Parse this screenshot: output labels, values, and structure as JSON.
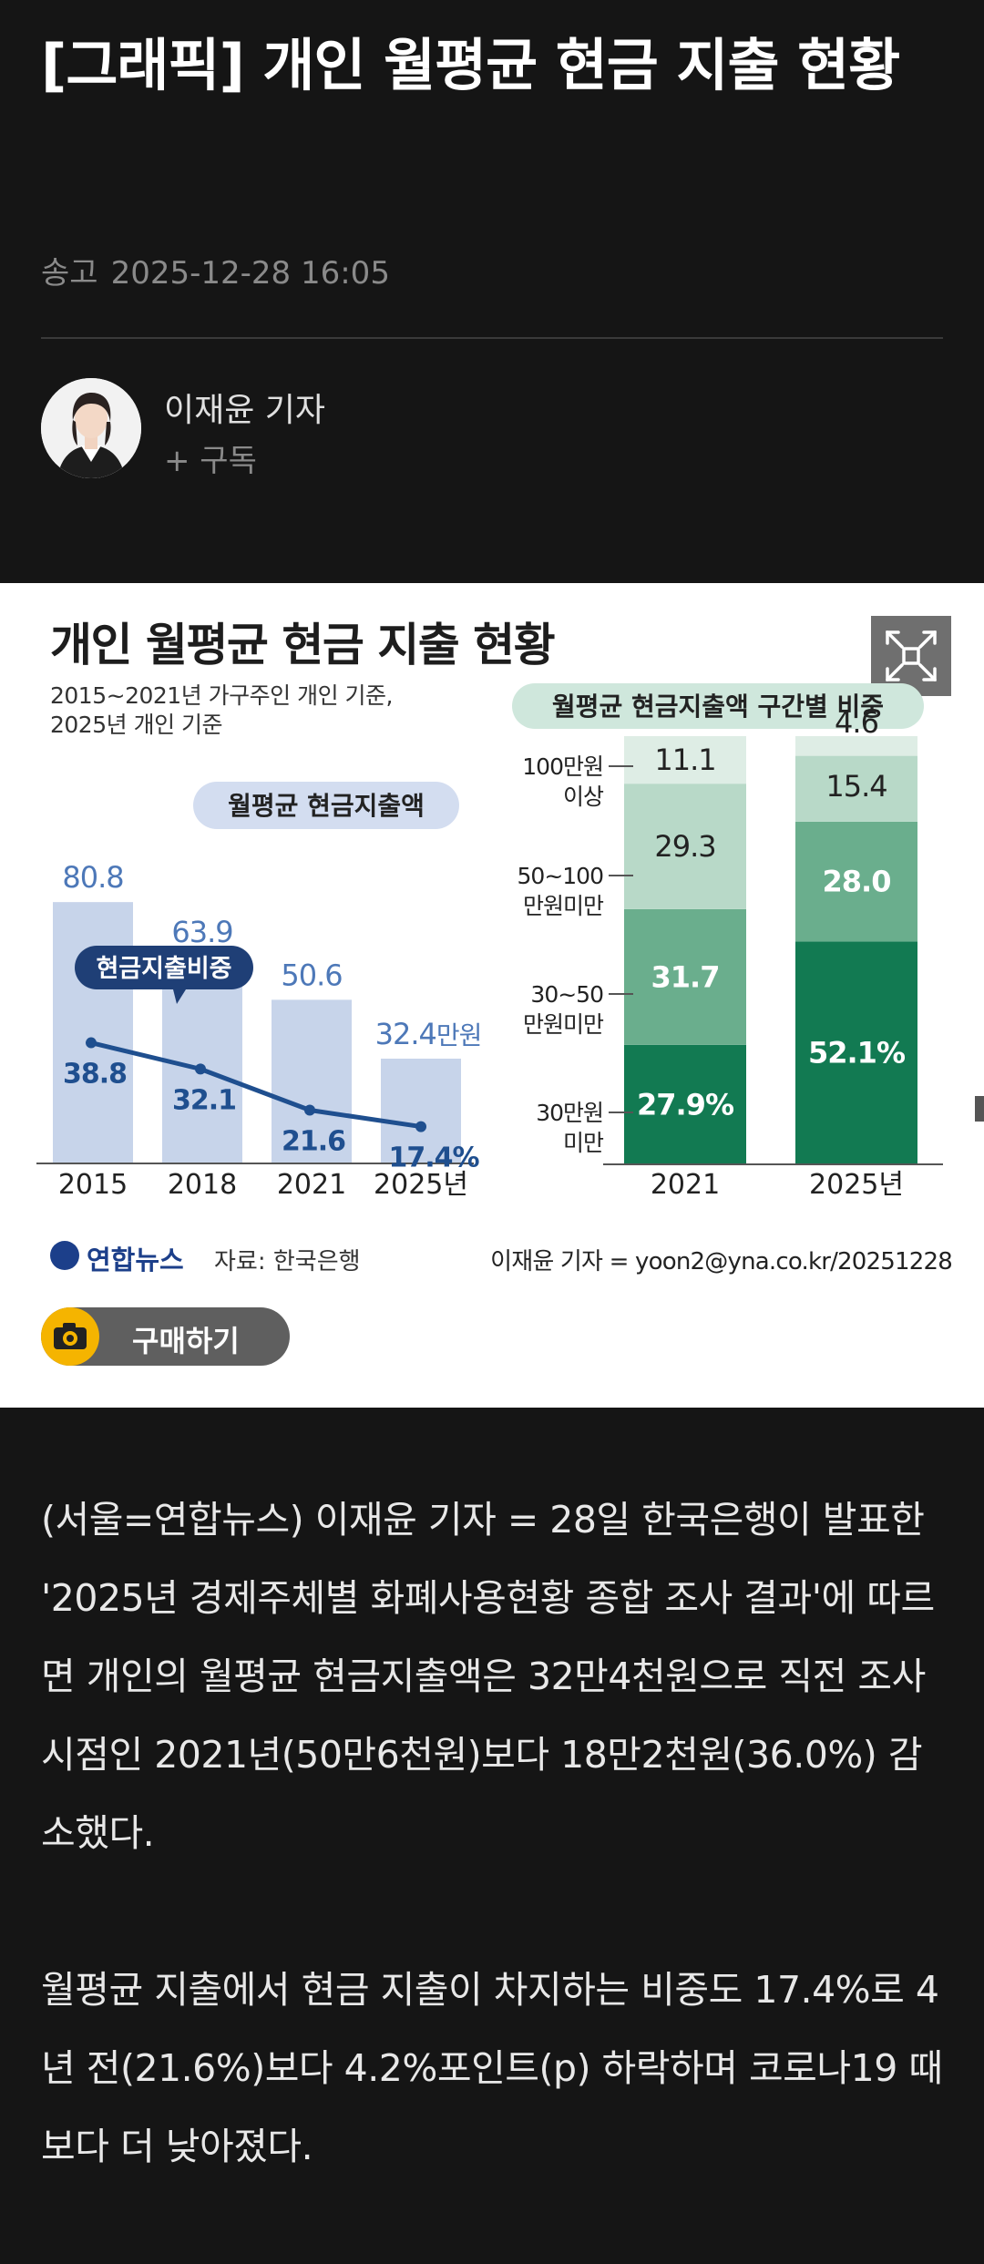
{
  "article": {
    "headline": "[그래픽] 개인 월평균 현금 지출 현황",
    "date_label": "송고",
    "date_value": "2025-12-28 16:05",
    "author": "이재윤 기자",
    "subscribe": "+ 구독"
  },
  "graphic": {
    "title": "개인 월평균 현금 지출 현황",
    "subtitle_1": "2015~2021년 가구주인 개인 기준,",
    "subtitle_2": "2025년 개인 기준",
    "brand": "연합뉴스",
    "source": "자료: 한국은행",
    "credit": "이재윤 기자 = yoon2@yna.co.kr/20251228",
    "buy_label": "구매하기",
    "expand_icon": "expand-icon"
  },
  "colors": {
    "bar_blue": "#c7d4ea",
    "line_blue": "#1f4f8f",
    "label_blue": "#4d78b8",
    "green_dark": "#127a52",
    "green_mid": "#6aae8d",
    "green_light": "#b8d9c8",
    "green_pale": "#deede5",
    "badge_blue": "#d3ddf0",
    "badge_green": "#cfe7dc",
    "badge_navy": "#1f3f76"
  },
  "chart_data": [
    {
      "type": "bar",
      "title": "월평균 현금지출액",
      "categories": [
        "2015",
        "2018",
        "2021",
        "2025년"
      ],
      "values": [
        80.8,
        63.9,
        50.6,
        32.4
      ],
      "value_labels": [
        "80.8",
        "63.9",
        "50.6",
        "32.4"
      ],
      "unit_suffix": "만원",
      "line_series": {
        "name": "현금지출비중",
        "values": [
          38.8,
          32.1,
          21.6,
          17.4
        ],
        "labels": [
          "38.8",
          "32.1",
          "21.6",
          "17.4%"
        ]
      }
    },
    {
      "type": "bar",
      "title": "월평균 현금지출액 구간별 비중",
      "stacked": true,
      "categories": [
        "2021",
        "2025년"
      ],
      "series": [
        {
          "name": "30만원 미만",
          "values": [
            27.9,
            52.1
          ],
          "labels": [
            "27.9%",
            "52.1%"
          ]
        },
        {
          "name": "30~50 만원미만",
          "values": [
            31.7,
            28.0
          ],
          "labels": [
            "31.7",
            "28.0"
          ]
        },
        {
          "name": "50~100 만원미만",
          "values": [
            29.3,
            15.4
          ],
          "labels": [
            "29.3",
            "15.4"
          ]
        },
        {
          "name": "100만원 이상",
          "values": [
            11.1,
            4.6
          ],
          "labels": [
            "11.1",
            "4.6"
          ]
        }
      ],
      "band_labels": [
        [
          "30만원",
          "미만"
        ],
        [
          "30~50",
          "만원미만"
        ],
        [
          "50~100",
          "만원미만"
        ],
        [
          "100만원",
          "이상"
        ]
      ]
    }
  ],
  "body": {
    "para1": "(서울=연합뉴스) 이재윤 기자 = 28일 한국은행이 발표한 '2025년 경제주체별 화폐사용현황 종합 조사 결과'에 따르면 개인의 월평균 현금지출액은 32만4천원으로 직전 조사 시점인 2021년(50만6천원)보다 18만2천원(36.0%) 감소했다.",
    "para2": "월평균 지출에서 현금 지출이 차지하는 비중도 17.4%로 4년 전(21.6%)보다 4.2%포인트(p) 하락하며 코로나19 때보다 더 낮아졌다."
  }
}
